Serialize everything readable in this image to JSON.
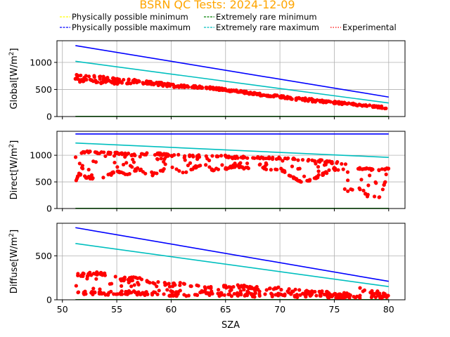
{
  "chart_data": {
    "type": "scatter",
    "title": "BSRN QC Tests: 2024-12-09",
    "title_color": "#ffa500",
    "legend": {
      "placement": "top",
      "entries": [
        {
          "label": "Physically possible minimum",
          "color": "#ffff00",
          "style": "dashed"
        },
        {
          "label": "Extremely rare minimum",
          "color": "#008000",
          "style": "dashed"
        },
        {
          "label": "Physically possible maximum",
          "color": "#0000ff",
          "style": "dashed"
        },
        {
          "label": "Extremely rare maximum",
          "color": "#00bfbf",
          "style": "dashed"
        },
        {
          "label": "Experimental",
          "color": "#ff0000",
          "style": "dotted"
        }
      ]
    },
    "xlabel": "SZA",
    "xlim": [
      49.5,
      81.5
    ],
    "xticks": [
      50,
      55,
      60,
      65,
      70,
      75,
      80
    ],
    "grid": true,
    "panels": [
      {
        "ylabel_main": "Global[W/m",
        "ylabel_sup": "2",
        "ylabel_end": "]",
        "ylim": [
          0,
          1400
        ],
        "yticks": [
          0,
          500,
          1000
        ],
        "series": [
          {
            "name": "Physically possible maximum",
            "color": "#0000ff",
            "x": [
              51.2,
              80
            ],
            "y": [
              1310,
              360
            ]
          },
          {
            "name": "Extremely rare maximum",
            "color": "#00bfbf",
            "x": [
              51.2,
              80
            ],
            "y": [
              1020,
              250
            ]
          },
          {
            "name": "Extremely rare minimum",
            "color": "#008000",
            "x": [
              51.2,
              80
            ],
            "y": [
              2,
              2
            ]
          },
          {
            "name": "Experimental",
            "color": "#ff0000",
            "type": "scatter",
            "x": [
              51.2,
              51.5,
              52,
              53,
              54,
              55,
              56,
              57,
              58,
              59,
              60,
              61,
              62,
              63,
              64,
              65,
              66,
              67,
              68,
              69,
              70,
              71,
              72,
              73,
              74,
              75,
              76,
              77,
              78,
              79,
              80
            ],
            "y": [
              700,
              720,
              700,
              690,
              670,
              660,
              650,
              640,
              620,
              600,
              570,
              560,
              550,
              540,
              520,
              490,
              470,
              440,
              410,
              390,
              370,
              340,
              320,
              300,
              280,
              260,
              240,
              220,
              200,
              180,
              160
            ],
            "spread": [
              60,
              80,
              80,
              80,
              60,
              60,
              40,
              40,
              30,
              30,
              30,
              20,
              20,
              20,
              20,
              20,
              20,
              20,
              20,
              20,
              20,
              20,
              30,
              30,
              20,
              20,
              20,
              20,
              15,
              15,
              20
            ]
          }
        ]
      },
      {
        "ylabel_main": "Direct[W/m",
        "ylabel_sup": "2",
        "ylabel_end": "]",
        "ylim": [
          0,
          1450
        ],
        "yticks": [
          0,
          500,
          1000
        ],
        "series": [
          {
            "name": "Physically possible maximum",
            "color": "#0000ff",
            "x": [
              51.2,
              80
            ],
            "y": [
              1400,
              1400
            ]
          },
          {
            "name": "Extremely rare maximum",
            "color": "#00bfbf",
            "x": [
              51.2,
              80
            ],
            "y": [
              1230,
              960
            ]
          },
          {
            "name": "Extremely rare minimum",
            "color": "#008000",
            "x": [
              51.2,
              80
            ],
            "y": [
              2,
              2
            ]
          },
          {
            "name": "Experimental",
            "color": "#ff0000",
            "type": "scatter",
            "x": [
              51.2,
              51.5,
              52,
              53,
              54,
              55,
              56,
              57,
              58,
              59,
              60,
              61,
              62,
              63,
              64,
              65,
              66,
              67,
              68,
              69,
              70,
              71,
              72,
              73,
              74,
              75,
              76,
              77,
              78,
              79,
              80
            ],
            "upper": [
              950,
              1050,
              1060,
              1050,
              1040,
              1040,
              1020,
              1010,
              1030,
              1020,
              1000,
              990,
              980,
              990,
              1000,
              980,
              960,
              960,
              950,
              950,
              940,
              930,
              920,
              900,
              890,
              870,
              850,
              750,
              740,
              720,
              750
            ],
            "lower": [
              500,
              650,
              600,
              550,
              600,
              700,
              650,
              750,
              600,
              700,
              800,
              650,
              750,
              850,
              700,
              750,
              800,
              750,
              850,
              700,
              750,
              600,
              500,
              550,
              650,
              750,
              300,
              400,
              250,
              150,
              650
            ]
          }
        ]
      },
      {
        "ylabel_main": "Diffuse[W/m",
        "ylabel_sup": "2",
        "ylabel_end": "]",
        "ylim": [
          0,
          870
        ],
        "yticks": [
          0,
          500
        ],
        "series": [
          {
            "name": "Physically possible maximum",
            "color": "#0000ff",
            "x": [
              51.2,
              80
            ],
            "y": [
              820,
              210
            ]
          },
          {
            "name": "Extremely rare maximum",
            "color": "#00bfbf",
            "x": [
              51.2,
              80
            ],
            "y": [
              640,
              150
            ]
          },
          {
            "name": "Extremely rare minimum",
            "color": "#008000",
            "x": [
              51.2,
              80
            ],
            "y": [
              2,
              2
            ]
          },
          {
            "name": "Experimental",
            "color": "#ff0000",
            "type": "scatter",
            "x": [
              51.2,
              51.5,
              52,
              53,
              54,
              55,
              56,
              57,
              58,
              59,
              60,
              61,
              62,
              63,
              64,
              65,
              66,
              67,
              68,
              69,
              70,
              71,
              72,
              73,
              74,
              75,
              76,
              77,
              78,
              79,
              80
            ],
            "upper": [
              280,
              290,
              280,
              300,
              290,
              250,
              230,
              250,
              200,
              200,
              170,
              180,
              160,
              140,
              140,
              150,
              150,
              150,
              130,
              140,
              130,
              110,
              90,
              80,
              80,
              70,
              60,
              130,
              100,
              80,
              60
            ],
            "lower": [
              120,
              80,
              80,
              75,
              75,
              75,
              75,
              70,
              70,
              65,
              60,
              60,
              60,
              80,
              60,
              60,
              60,
              55,
              50,
              55,
              55,
              50,
              45,
              45,
              40,
              40,
              35,
              40,
              30,
              30,
              30
            ]
          }
        ]
      }
    ]
  }
}
